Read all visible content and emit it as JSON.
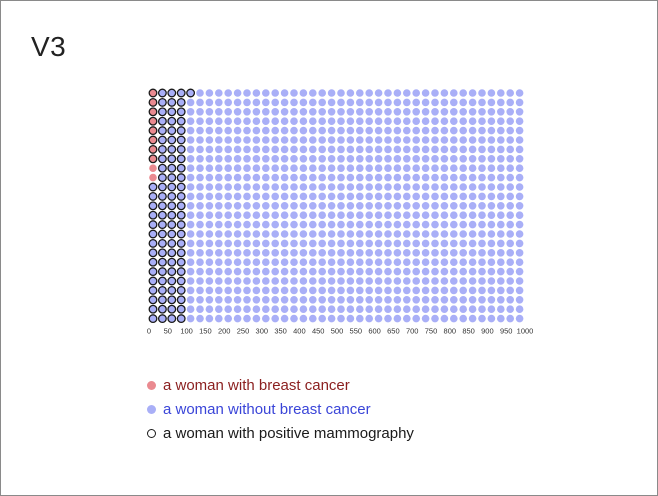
{
  "slide": {
    "title": "V3"
  },
  "colors": {
    "cancer": "#ea8a90",
    "no_cancer": "#a9aff7",
    "positive_outline": "#1a1a1a",
    "legend_cancer_text": "#8b1f1f",
    "legend_no_cancer_text": "#3a45d8",
    "legend_positive_text": "#1a1a1a"
  },
  "icon_array": {
    "total": 1000,
    "rows": 25,
    "columns": 40,
    "fill_order": "column-major",
    "cancer_count": 10,
    "positive_count": 99,
    "cancer_positive_count": 8,
    "axis_ticks": [
      "0",
      "50",
      "100",
      "150",
      "200",
      "250",
      "300",
      "350",
      "400",
      "450",
      "500",
      "550",
      "600",
      "650",
      "700",
      "750",
      "800",
      "850",
      "900",
      "950",
      "1000"
    ]
  },
  "legend": {
    "items": [
      {
        "label": "a woman with breast cancer",
        "marker": "filled",
        "key": "cancer"
      },
      {
        "label": "a woman without breast cancer",
        "marker": "filled",
        "key": "no_cancer"
      },
      {
        "label": "a woman with positive mammography",
        "marker": "outline",
        "key": "positive"
      }
    ]
  }
}
